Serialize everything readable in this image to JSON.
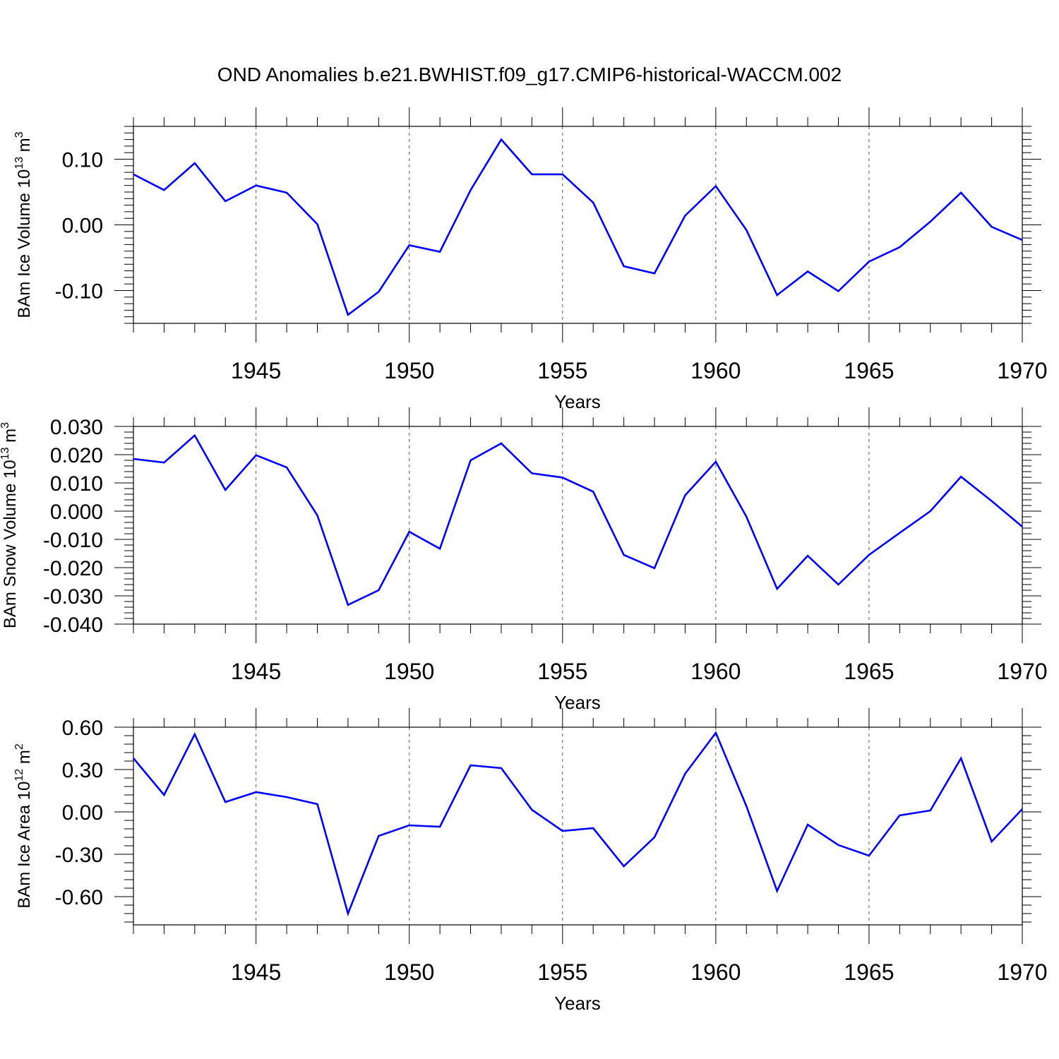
{
  "title": "OND Anomalies b.e21.BWHIST.f09_g17.CMIP6-historical-WACCM.002",
  "colors": {
    "line": "#0000ff",
    "axis": "#000000",
    "grid": "#555555"
  },
  "chart_data": [
    {
      "type": "line",
      "ylabel_main": "BAm Ice Volume 10",
      "ylabel_exp": "13",
      "ylabel_unit": " m",
      "ylabel_unit_exp": "3",
      "xlabel": "Years",
      "xlim": [
        1941,
        1970
      ],
      "ylim": [
        -0.15,
        0.15
      ],
      "yticks": [
        -0.1,
        0.0,
        0.1
      ],
      "yticklabels": [
        "-0.10",
        "0.00",
        "0.10"
      ],
      "xticks": [
        1945,
        1950,
        1955,
        1960,
        1965,
        1970
      ],
      "xticklabels": [
        "1945",
        "1950",
        "1955",
        "1960",
        "1965",
        "1970"
      ],
      "x": [
        1941,
        1942,
        1943,
        1944,
        1945,
        1946,
        1947,
        1948,
        1949,
        1950,
        1951,
        1952,
        1953,
        1954,
        1955,
        1956,
        1957,
        1958,
        1959,
        1960,
        1961,
        1962,
        1963,
        1964,
        1965,
        1966,
        1967,
        1968,
        1969,
        1970
      ],
      "values": [
        0.077,
        0.053,
        0.094,
        0.036,
        0.06,
        0.049,
        0.001,
        -0.137,
        -0.102,
        -0.031,
        -0.041,
        0.053,
        0.13,
        0.077,
        0.077,
        0.034,
        -0.063,
        -0.074,
        0.014,
        0.059,
        -0.008,
        -0.107,
        -0.071,
        -0.101,
        -0.056,
        -0.034,
        0.005,
        0.049,
        -0.003,
        -0.023
      ]
    },
    {
      "type": "line",
      "ylabel_main": "BAm Snow Volume 10",
      "ylabel_exp": "13",
      "ylabel_unit": " m",
      "ylabel_unit_exp": "3",
      "xlabel": "Years",
      "xlim": [
        1941,
        1970
      ],
      "ylim": [
        -0.04,
        0.03
      ],
      "yticks": [
        -0.04,
        -0.03,
        -0.02,
        -0.01,
        0.0,
        0.01,
        0.02,
        0.03
      ],
      "yticklabels": [
        "-0.040",
        "-0.030",
        "-0.020",
        "-0.010",
        "0.000",
        "0.010",
        "0.020",
        "0.030"
      ],
      "xticks": [
        1945,
        1950,
        1955,
        1960,
        1965,
        1970
      ],
      "xticklabels": [
        "1945",
        "1950",
        "1955",
        "1960",
        "1965",
        "1970"
      ],
      "x": [
        1941,
        1942,
        1943,
        1944,
        1945,
        1946,
        1947,
        1948,
        1949,
        1950,
        1951,
        1952,
        1953,
        1954,
        1955,
        1956,
        1957,
        1958,
        1959,
        1960,
        1961,
        1962,
        1963,
        1964,
        1965,
        1966,
        1967,
        1968,
        1969,
        1970
      ],
      "values": [
        0.0185,
        0.0172,
        0.0268,
        0.0075,
        0.0198,
        0.0155,
        -0.0015,
        -0.0332,
        -0.028,
        -0.0073,
        -0.0133,
        0.018,
        0.024,
        0.0134,
        0.0119,
        0.0069,
        -0.0155,
        -0.0202,
        0.0056,
        0.0175,
        -0.002,
        -0.0275,
        -0.0158,
        -0.026,
        -0.0155,
        -0.0077,
        0.0,
        0.0122,
        0.0036,
        -0.0055
      ]
    },
    {
      "type": "line",
      "ylabel_main": "BAm Ice Area 10",
      "ylabel_exp": "12",
      "ylabel_unit": " m",
      "ylabel_unit_exp": "2",
      "xlabel": "Years",
      "xlim": [
        1941,
        1970
      ],
      "ylim": [
        -0.8,
        0.6
      ],
      "yticks": [
        -0.6,
        -0.3,
        0.0,
        0.3,
        0.6
      ],
      "yticklabels": [
        "-0.60",
        "-0.30",
        "0.00",
        "0.30",
        "0.60"
      ],
      "xticks": [
        1945,
        1950,
        1955,
        1960,
        1965,
        1970
      ],
      "xticklabels": [
        "1945",
        "1950",
        "1955",
        "1960",
        "1965",
        "1970"
      ],
      "x": [
        1941,
        1942,
        1943,
        1944,
        1945,
        1946,
        1947,
        1948,
        1949,
        1950,
        1951,
        1952,
        1953,
        1954,
        1955,
        1956,
        1957,
        1958,
        1959,
        1960,
        1961,
        1962,
        1963,
        1964,
        1965,
        1966,
        1967,
        1968,
        1969,
        1970
      ],
      "values": [
        0.38,
        0.12,
        0.55,
        0.07,
        0.14,
        0.105,
        0.055,
        -0.72,
        -0.17,
        -0.095,
        -0.105,
        0.33,
        0.31,
        0.015,
        -0.135,
        -0.115,
        -0.385,
        -0.18,
        0.27,
        0.56,
        0.04,
        -0.56,
        -0.09,
        -0.235,
        -0.31,
        -0.025,
        0.01,
        0.38,
        -0.21,
        0.02
      ]
    }
  ]
}
